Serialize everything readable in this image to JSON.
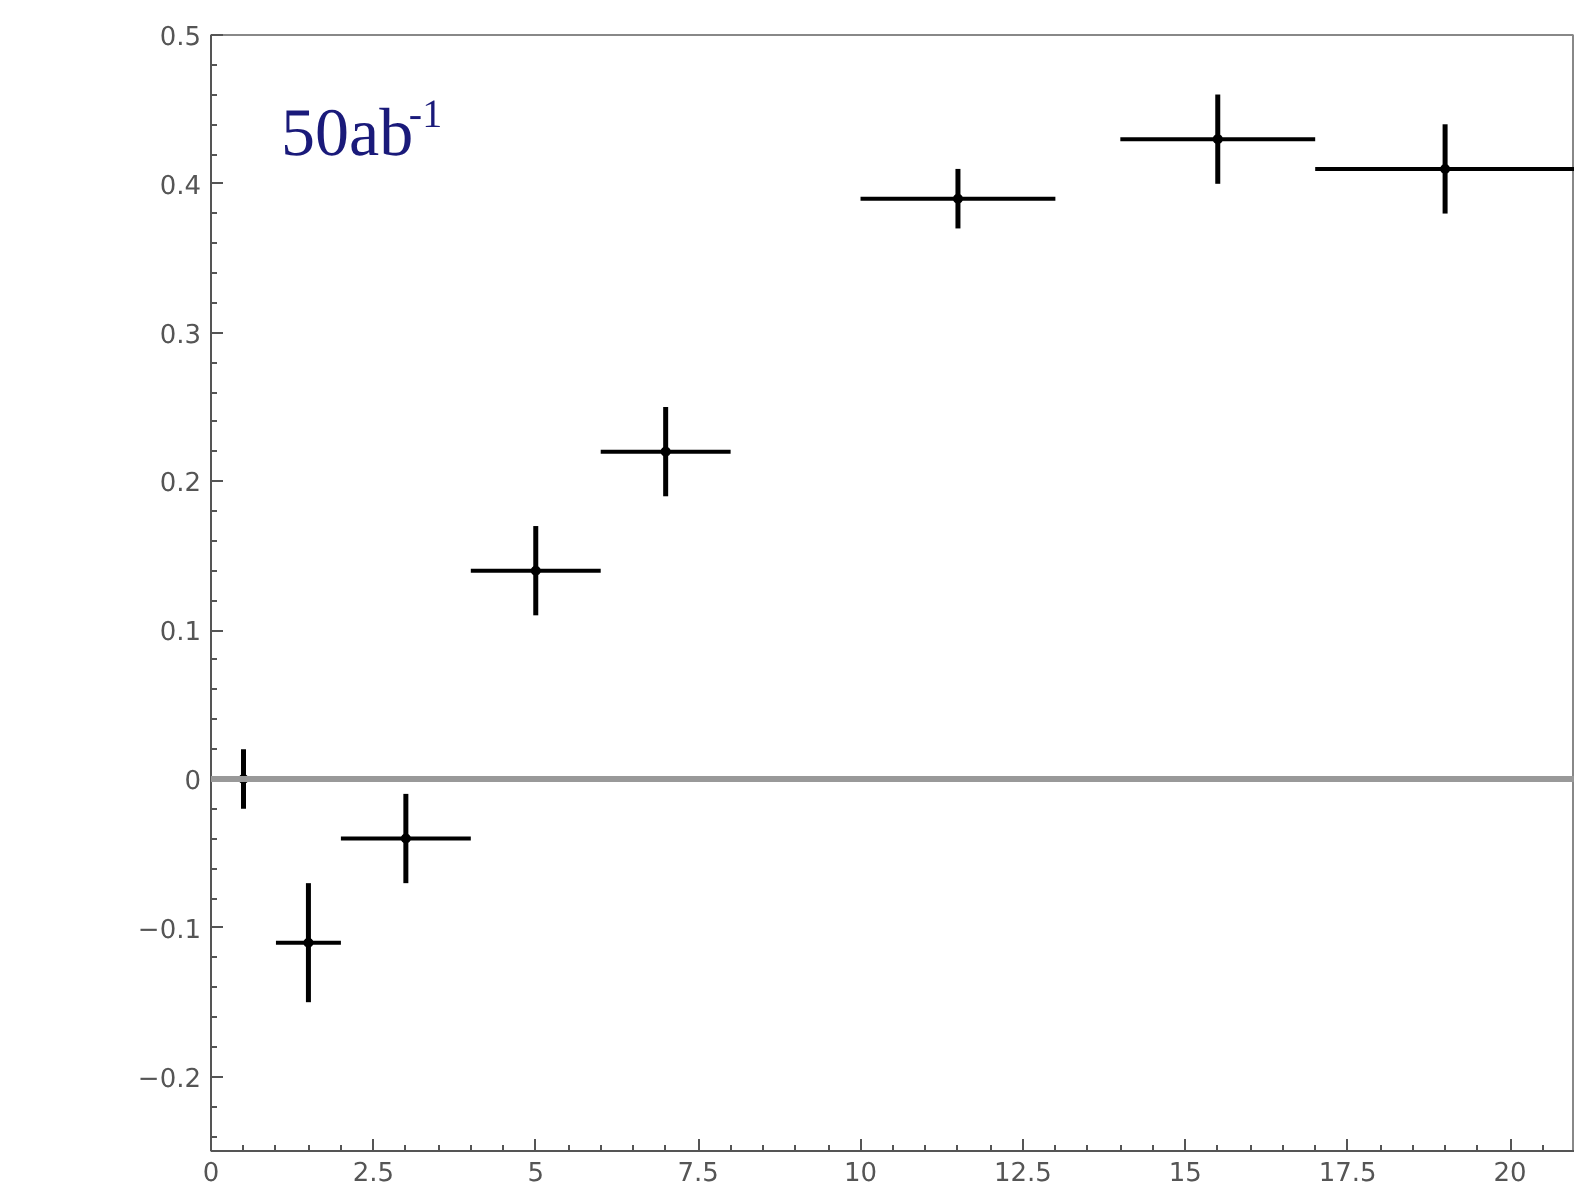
{
  "chart_data": {
    "type": "scatter",
    "marker": "circle",
    "x": [
      0.5,
      1.5,
      3,
      5,
      7,
      11.5,
      15.5,
      19
    ],
    "values": [
      0,
      -0.11,
      -0.04,
      0.14,
      0.22,
      0.39,
      0.43,
      0.41
    ],
    "errors": [
      0.02,
      0.04,
      0.03,
      0.03,
      0.03,
      0.02,
      0.03,
      0.03
    ],
    "xerrors": [
      0.5,
      0.5,
      1,
      1,
      1,
      1.5,
      1.5,
      2
    ],
    "color": "#000000",
    "xlim": [
      0,
      21
    ],
    "ylim": [
      -0.25,
      0.5
    ],
    "xticks": [
      0,
      2.5,
      5,
      7.5,
      10,
      12.5,
      15,
      17.5,
      20
    ],
    "yticks": [
      -0.2,
      -0.1,
      0,
      0.1,
      0.2,
      0.3,
      0.4,
      0.5
    ],
    "ref_lines": [
      {
        "axis": "y",
        "value": 0,
        "color": "#999999"
      }
    ],
    "annotations": [
      "50ab$^{-1}$"
    ]
  }
}
